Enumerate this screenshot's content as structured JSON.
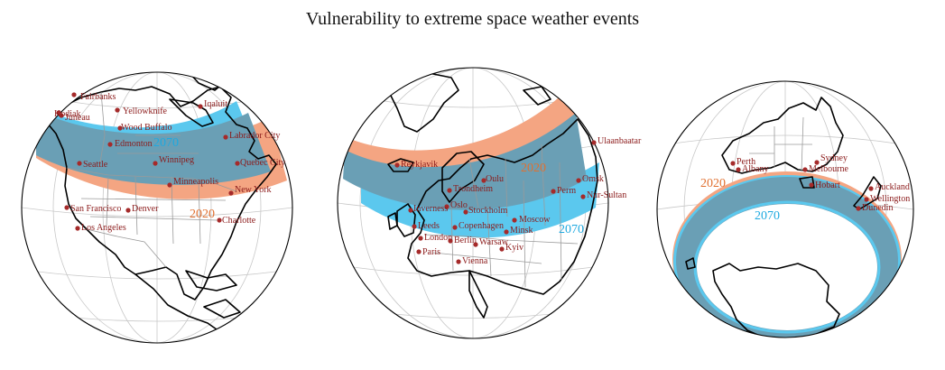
{
  "title": "Vulnerability to extreme space weather events",
  "colors": {
    "band_2020": "#f4a582",
    "band_2070": "#5bc8ee",
    "band_overlap": "#6a9fb5",
    "year_2020_text": "#e07030",
    "year_2070_text": "#1ea9e0",
    "city_marker": "#a52a2a",
    "city_text": "#8b1a1a"
  },
  "globes": [
    {
      "id": "north-america",
      "years": {
        "band_2020": "2020",
        "band_2070": "2070"
      },
      "cities": [
        "Fairbanks",
        "Yellowknife",
        "Iqaluit",
        "Kodiak",
        "Juneau",
        "Wood Buffalo",
        "Edmonton",
        "Labrador City",
        "Seattle",
        "Winnipeg",
        "Quebec City",
        "Minneapolis",
        "New York",
        "San Francisco",
        "Denver",
        "Charlotte",
        "Los Angeles"
      ]
    },
    {
      "id": "europe-asia",
      "years": {
        "band_2020": "2020",
        "band_2070": "2070"
      },
      "cities": [
        "Ulaanbaatar",
        "Reykjavik",
        "Oulu",
        "Trondheim",
        "Omsk",
        "Perm",
        "Nur-Sultan",
        "Inverness",
        "Oslo",
        "Stockholm",
        "Moscow",
        "Leeds",
        "Copenhagen",
        "Minsk",
        "London",
        "Berlin",
        "Warsaw",
        "Paris",
        "Kyiv",
        "Vienna"
      ]
    },
    {
      "id": "australia-antarctica",
      "years": {
        "band_2020": "2020",
        "band_2070": "2070"
      },
      "cities": [
        "Perth",
        "Albany",
        "Sydney",
        "Melbourne",
        "Hobart",
        "Auckland",
        "Wellington",
        "Dunedin"
      ]
    }
  ]
}
